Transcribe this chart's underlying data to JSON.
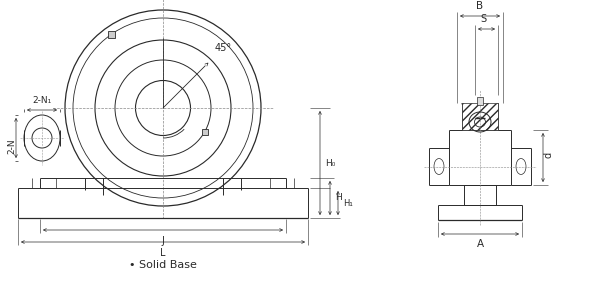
{
  "bg_color": "#ffffff",
  "lc": "#2a2a2a",
  "dc": "#2a2a2a",
  "fig_w": 5.9,
  "fig_h": 2.89,
  "dpi": 100,
  "title_text": "• Solid Base",
  "label_45": "45°",
  "label_2N1": "2-N₁",
  "label_2N": "2-N",
  "label_B": "B",
  "label_S": "S",
  "label_H0": "H₀",
  "label_H": "H",
  "label_H1": "H₁",
  "label_J": "J",
  "label_L": "L",
  "label_A": "A",
  "label_d": "d"
}
